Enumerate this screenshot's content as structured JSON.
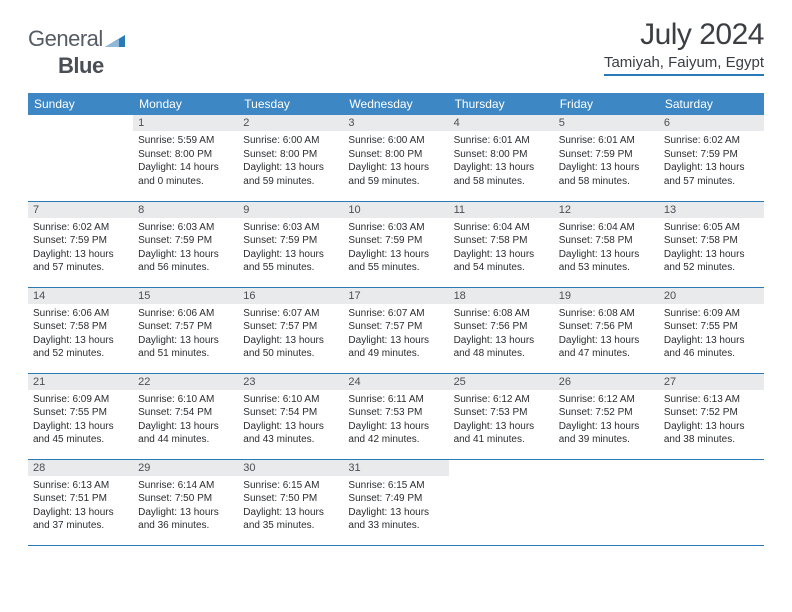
{
  "brand": {
    "name1": "General",
    "name2": "Blue"
  },
  "title": "July 2024",
  "location": "Tamiyah, Faiyum, Egypt",
  "colors": {
    "header_bg": "#3c87c4",
    "border": "#2a7ab8",
    "daynum_bg": "#e9eaeb",
    "text": "#2b2d30",
    "title_text": "#3b3f44"
  },
  "columns": [
    "Sunday",
    "Monday",
    "Tuesday",
    "Wednesday",
    "Thursday",
    "Friday",
    "Saturday"
  ],
  "weeks": [
    [
      null,
      {
        "n": "1",
        "sr": "5:59 AM",
        "ss": "8:00 PM",
        "dl": "14 hours and 0 minutes."
      },
      {
        "n": "2",
        "sr": "6:00 AM",
        "ss": "8:00 PM",
        "dl": "13 hours and 59 minutes."
      },
      {
        "n": "3",
        "sr": "6:00 AM",
        "ss": "8:00 PM",
        "dl": "13 hours and 59 minutes."
      },
      {
        "n": "4",
        "sr": "6:01 AM",
        "ss": "8:00 PM",
        "dl": "13 hours and 58 minutes."
      },
      {
        "n": "5",
        "sr": "6:01 AM",
        "ss": "7:59 PM",
        "dl": "13 hours and 58 minutes."
      },
      {
        "n": "6",
        "sr": "6:02 AM",
        "ss": "7:59 PM",
        "dl": "13 hours and 57 minutes."
      }
    ],
    [
      {
        "n": "7",
        "sr": "6:02 AM",
        "ss": "7:59 PM",
        "dl": "13 hours and 57 minutes."
      },
      {
        "n": "8",
        "sr": "6:03 AM",
        "ss": "7:59 PM",
        "dl": "13 hours and 56 minutes."
      },
      {
        "n": "9",
        "sr": "6:03 AM",
        "ss": "7:59 PM",
        "dl": "13 hours and 55 minutes."
      },
      {
        "n": "10",
        "sr": "6:03 AM",
        "ss": "7:59 PM",
        "dl": "13 hours and 55 minutes."
      },
      {
        "n": "11",
        "sr": "6:04 AM",
        "ss": "7:58 PM",
        "dl": "13 hours and 54 minutes."
      },
      {
        "n": "12",
        "sr": "6:04 AM",
        "ss": "7:58 PM",
        "dl": "13 hours and 53 minutes."
      },
      {
        "n": "13",
        "sr": "6:05 AM",
        "ss": "7:58 PM",
        "dl": "13 hours and 52 minutes."
      }
    ],
    [
      {
        "n": "14",
        "sr": "6:06 AM",
        "ss": "7:58 PM",
        "dl": "13 hours and 52 minutes."
      },
      {
        "n": "15",
        "sr": "6:06 AM",
        "ss": "7:57 PM",
        "dl": "13 hours and 51 minutes."
      },
      {
        "n": "16",
        "sr": "6:07 AM",
        "ss": "7:57 PM",
        "dl": "13 hours and 50 minutes."
      },
      {
        "n": "17",
        "sr": "6:07 AM",
        "ss": "7:57 PM",
        "dl": "13 hours and 49 minutes."
      },
      {
        "n": "18",
        "sr": "6:08 AM",
        "ss": "7:56 PM",
        "dl": "13 hours and 48 minutes."
      },
      {
        "n": "19",
        "sr": "6:08 AM",
        "ss": "7:56 PM",
        "dl": "13 hours and 47 minutes."
      },
      {
        "n": "20",
        "sr": "6:09 AM",
        "ss": "7:55 PM",
        "dl": "13 hours and 46 minutes."
      }
    ],
    [
      {
        "n": "21",
        "sr": "6:09 AM",
        "ss": "7:55 PM",
        "dl": "13 hours and 45 minutes."
      },
      {
        "n": "22",
        "sr": "6:10 AM",
        "ss": "7:54 PM",
        "dl": "13 hours and 44 minutes."
      },
      {
        "n": "23",
        "sr": "6:10 AM",
        "ss": "7:54 PM",
        "dl": "13 hours and 43 minutes."
      },
      {
        "n": "24",
        "sr": "6:11 AM",
        "ss": "7:53 PM",
        "dl": "13 hours and 42 minutes."
      },
      {
        "n": "25",
        "sr": "6:12 AM",
        "ss": "7:53 PM",
        "dl": "13 hours and 41 minutes."
      },
      {
        "n": "26",
        "sr": "6:12 AM",
        "ss": "7:52 PM",
        "dl": "13 hours and 39 minutes."
      },
      {
        "n": "27",
        "sr": "6:13 AM",
        "ss": "7:52 PM",
        "dl": "13 hours and 38 minutes."
      }
    ],
    [
      {
        "n": "28",
        "sr": "6:13 AM",
        "ss": "7:51 PM",
        "dl": "13 hours and 37 minutes."
      },
      {
        "n": "29",
        "sr": "6:14 AM",
        "ss": "7:50 PM",
        "dl": "13 hours and 36 minutes."
      },
      {
        "n": "30",
        "sr": "6:15 AM",
        "ss": "7:50 PM",
        "dl": "13 hours and 35 minutes."
      },
      {
        "n": "31",
        "sr": "6:15 AM",
        "ss": "7:49 PM",
        "dl": "13 hours and 33 minutes."
      },
      null,
      null,
      null
    ]
  ],
  "labels": {
    "sunrise": "Sunrise:",
    "sunset": "Sunset:",
    "daylight": "Daylight:"
  }
}
